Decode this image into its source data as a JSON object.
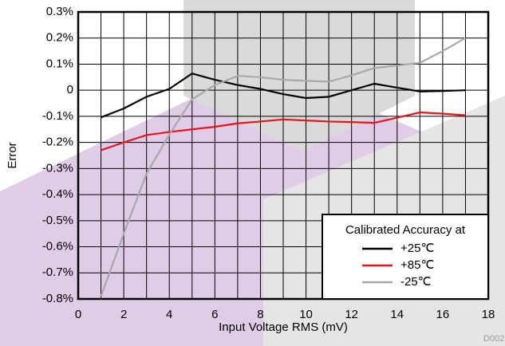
{
  "chart_data": {
    "type": "line",
    "x_label": "Input Voltage RMS (mV)",
    "y_label": "Error",
    "x": [
      1,
      2,
      3,
      4,
      5,
      6,
      7,
      8,
      9,
      10,
      11,
      12,
      13,
      14,
      15,
      16,
      17
    ],
    "series": [
      {
        "name": "+25℃",
        "color": "#000000",
        "values": [
          -0.104,
          -0.07,
          -0.025,
          0.005,
          0.064,
          0.04,
          0.02,
          0.005,
          -0.015,
          -0.03,
          -0.025,
          0.0,
          0.025,
          0.01,
          -0.005,
          -0.003,
          0.0
        ]
      },
      {
        "name": "+85℃",
        "color": "#e8141c",
        "values": [
          -0.23,
          -0.2,
          -0.172,
          -0.16,
          -0.15,
          -0.14,
          -0.127,
          -0.12,
          -0.112,
          -0.116,
          -0.12,
          -0.122,
          -0.125,
          -0.105,
          -0.085,
          -0.09,
          -0.096
        ]
      },
      {
        "name": "-25℃",
        "color": "#a8a8a8",
        "values": [
          -0.79,
          -0.55,
          -0.32,
          -0.17,
          -0.035,
          0.02,
          0.055,
          0.05,
          0.04,
          0.036,
          0.033,
          0.057,
          0.085,
          0.095,
          0.105,
          0.15,
          0.2
        ]
      }
    ],
    "legend_title": "Calibrated Accuracy at",
    "legend": "bottom-right",
    "xlim": [
      0,
      18
    ],
    "xticks": [
      0,
      2,
      4,
      6,
      8,
      10,
      12,
      14,
      16,
      18
    ],
    "ylim": [
      -0.8,
      0.3
    ],
    "yticks": [
      {
        "value": -0.8,
        "label": "-0.8%"
      },
      {
        "value": -0.7,
        "label": "-0.7%"
      },
      {
        "value": -0.6,
        "label": "-0.6%"
      },
      {
        "value": -0.5,
        "label": "-0.5%"
      },
      {
        "value": -0.4,
        "label": "-0.4%"
      },
      {
        "value": -0.3,
        "label": "-0.3%"
      },
      {
        "value": -0.2,
        "label": "-0.2%"
      },
      {
        "value": -0.1,
        "label": "-0.1%"
      },
      0,
      {
        "value": 0.1,
        "label": "0.1%"
      },
      {
        "value": 0.2,
        "label": "0.2%"
      },
      {
        "value": 0.3,
        "label": "0.3%"
      }
    ],
    "grid": true,
    "figure_id": "D002"
  }
}
